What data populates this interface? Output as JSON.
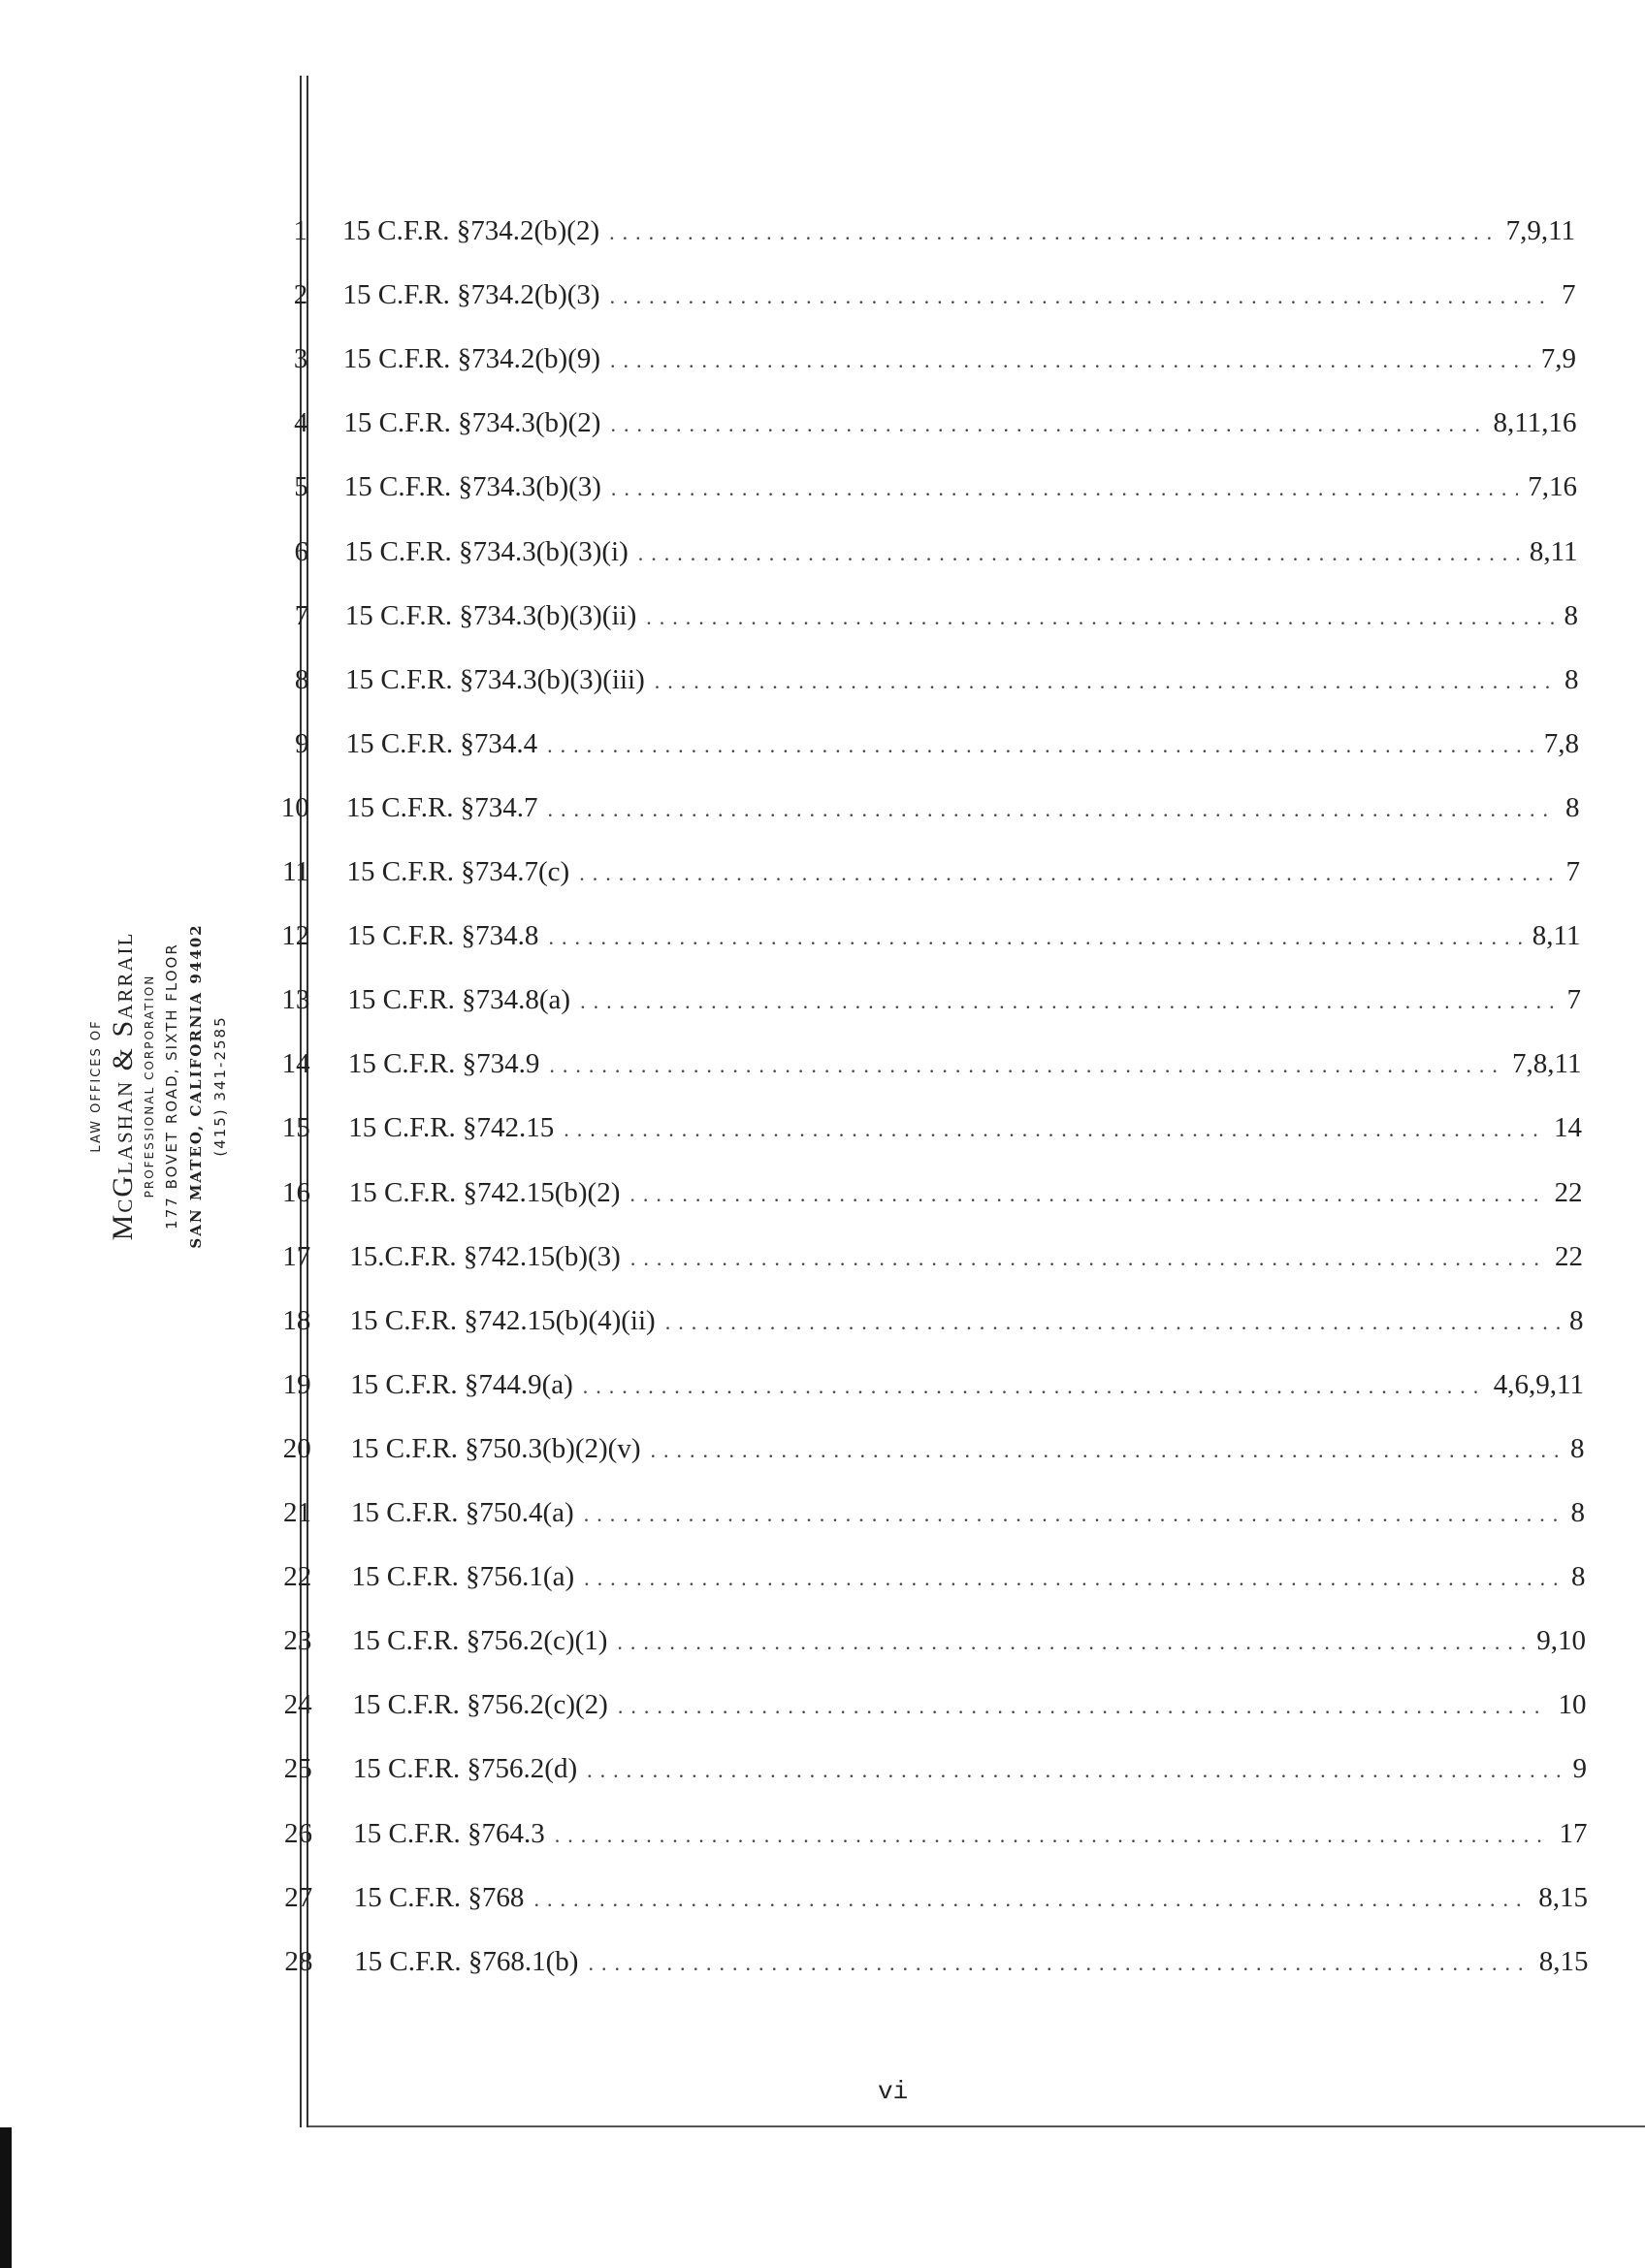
{
  "letterhead": {
    "line1": "LAW OFFICES OF",
    "firm": "McGlashan & Sarrail",
    "line3": "PROFESSIONAL CORPORATION",
    "address": "177 BOVET ROAD, SIXTH FLOOR",
    "city": "SAN MATEO, CALIFORNIA 94402",
    "phone": "(415) 341-2585"
  },
  "entries": [
    {
      "line": "1",
      "cite": "15 C.F.R. §734.2(b)(2)",
      "pages": "7,9,11"
    },
    {
      "line": "2",
      "cite": "15 C.F.R. §734.2(b)(3)",
      "pages": "7"
    },
    {
      "line": "3",
      "cite": "15 C.F.R. §734.2(b)(9)",
      "pages": "7,9"
    },
    {
      "line": "4",
      "cite": "15 C.F.R. §734.3(b)(2)",
      "pages": "8,11,16"
    },
    {
      "line": "5",
      "cite": "15 C.F.R. §734.3(b)(3)",
      "pages": "7,16"
    },
    {
      "line": "6",
      "cite": "15 C.F.R. §734.3(b)(3)(i)",
      "pages": "8,11"
    },
    {
      "line": "7",
      "cite": "15 C.F.R. §734.3(b)(3)(ii)",
      "pages": "8"
    },
    {
      "line": "8",
      "cite": "15 C.F.R. §734.3(b)(3)(iii)",
      "pages": "8"
    },
    {
      "line": "9",
      "cite": "15 C.F.R. §734.4",
      "pages": "7,8"
    },
    {
      "line": "10",
      "cite": "15 C.F.R. §734.7",
      "pages": "8"
    },
    {
      "line": "11",
      "cite": "15 C.F.R. §734.7(c)",
      "pages": "7"
    },
    {
      "line": "12",
      "cite": "15 C.F.R. §734.8",
      "pages": "8,11"
    },
    {
      "line": "13",
      "cite": "15 C.F.R. §734.8(a)",
      "pages": "7"
    },
    {
      "line": "14",
      "cite": "15 C.F.R. §734.9",
      "pages": "7,8,11"
    },
    {
      "line": "15",
      "cite": "15 C.F.R. §742.15",
      "pages": "14"
    },
    {
      "line": "16",
      "cite": "15 C.F.R. §742.15(b)(2)",
      "pages": "22"
    },
    {
      "line": "17",
      "cite": "15.C.F.R. §742.15(b)(3)",
      "pages": "22"
    },
    {
      "line": "18",
      "cite": "15 C.F.R. §742.15(b)(4)(ii)",
      "pages": "8"
    },
    {
      "line": "19",
      "cite": "15 C.F.R. §744.9(a)",
      "pages": "4,6,9,11"
    },
    {
      "line": "20",
      "cite": "15 C.F.R. §750.3(b)(2)(v)",
      "pages": "8"
    },
    {
      "line": "21",
      "cite": "15 C.F.R. §750.4(a)",
      "pages": "8"
    },
    {
      "line": "22",
      "cite": "15 C.F.R. §756.1(a)",
      "pages": "8"
    },
    {
      "line": "23",
      "cite": "15 C.F.R. §756.2(c)(1)",
      "pages": "9,10"
    },
    {
      "line": "24",
      "cite": "15 C.F.R. §756.2(c)(2)",
      "pages": "10"
    },
    {
      "line": "25",
      "cite": "15 C.F.R. §756.2(d)",
      "pages": "9"
    },
    {
      "line": "26",
      "cite": "15 C.F.R. §764.3",
      "pages": "17"
    },
    {
      "line": "27",
      "cite": "15 C.F.R. §768",
      "pages": "8,15"
    },
    {
      "line": "28",
      "cite": "15 C.F.R. §768.1(b)",
      "pages": "8,15"
    }
  ],
  "footer": {
    "page_number": "vi"
  }
}
